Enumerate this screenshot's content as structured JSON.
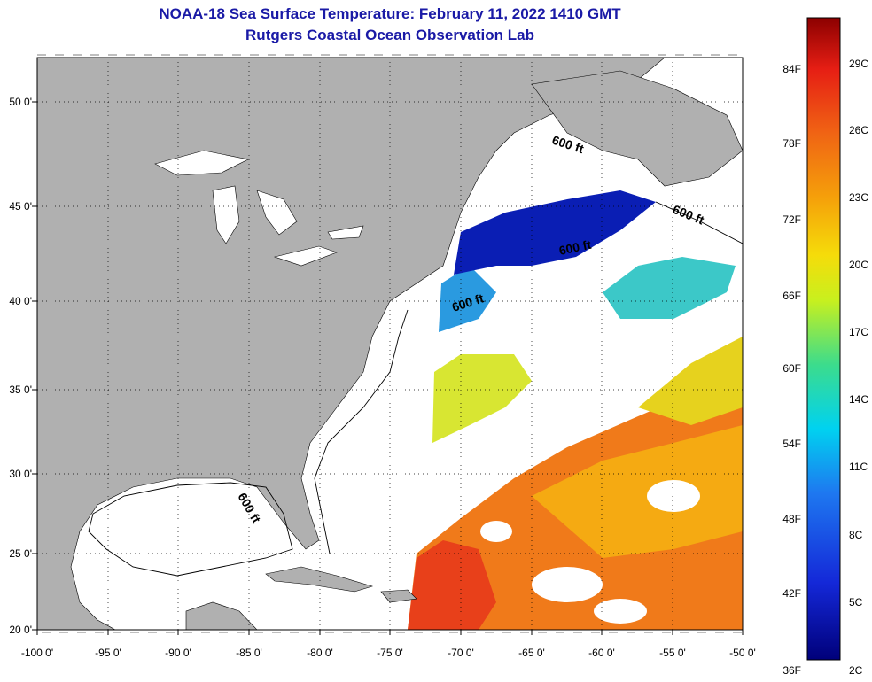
{
  "title": {
    "line1": "NOAA-18 Sea Surface Temperature:  February 11, 2022 1410 GMT",
    "line2": "Rutgers Coastal Ocean Observation Lab"
  },
  "axes": {
    "lon_labels": [
      "-100 0'",
      "-95 0'",
      "-90 0'",
      "-85 0'",
      "-80 0'",
      "-75 0'",
      "-70 0'",
      "-65 0'",
      "-60 0'",
      "-55 0'",
      "-50 0'"
    ],
    "lat_labels": [
      "20 0'",
      "25 0'",
      "30 0'",
      "35 0'",
      "40 0'",
      "45 0'",
      "50 0'"
    ],
    "lon_range": [
      -100,
      -50
    ],
    "lat_range": [
      20,
      52.5
    ],
    "grid": "dotted"
  },
  "colorbar": {
    "f_labels": [
      "36F",
      "42F",
      "48F",
      "54F",
      "60F",
      "66F",
      "72F",
      "78F",
      "84F"
    ],
    "c_labels": [
      "2C",
      "5C",
      "8C",
      "11C",
      "14C",
      "17C",
      "20C",
      "23C",
      "26C",
      "29C"
    ],
    "range_c": [
      2,
      31
    ]
  },
  "isobath_labels": [
    "600 ft",
    "600 ft",
    "600 ft",
    "600 ft",
    "600 ft"
  ],
  "colors": {
    "land": "#b0b0b0",
    "ocean_no_data": "#ffffff",
    "title": "#1a1aa6"
  }
}
